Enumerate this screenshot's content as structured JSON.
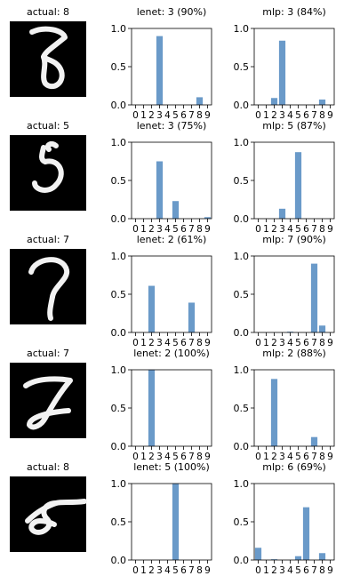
{
  "chart_data": {
    "type": "bar",
    "categories": [
      "0",
      "1",
      "2",
      "3",
      "4",
      "5",
      "6",
      "7",
      "8",
      "9"
    ],
    "ylim": [
      0,
      1
    ],
    "yticks": [
      "0.0",
      "0.5",
      "1.0"
    ],
    "bar_color": "#6A9AC9",
    "rows": [
      {
        "digit_title": "actual: 8",
        "lenet": {
          "title": "lenet: 3 (90%)",
          "values": [
            0,
            0,
            0,
            0.9,
            0,
            0,
            0,
            0,
            0.1,
            0
          ]
        },
        "mlp": {
          "title": "mlp: 3 (84%)",
          "values": [
            0,
            0,
            0.09,
            0.84,
            0,
            0,
            0,
            0,
            0.07,
            0
          ]
        }
      },
      {
        "digit_title": "actual: 5",
        "lenet": {
          "title": "lenet: 3 (75%)",
          "values": [
            0,
            0,
            0,
            0.75,
            0,
            0.23,
            0,
            0,
            0,
            0.02
          ]
        },
        "mlp": {
          "title": "mlp: 5 (87%)",
          "values": [
            0,
            0,
            0,
            0.13,
            0,
            0.87,
            0,
            0,
            0,
            0
          ]
        }
      },
      {
        "digit_title": "actual: 7",
        "lenet": {
          "title": "lenet: 2 (61%)",
          "values": [
            0,
            0,
            0.61,
            0,
            0,
            0,
            0,
            0.39,
            0,
            0
          ]
        },
        "mlp": {
          "title": "mlp: 7 (90%)",
          "values": [
            0,
            0,
            0,
            0,
            0.01,
            0,
            0,
            0.9,
            0.09,
            0
          ]
        }
      },
      {
        "digit_title": "actual: 7",
        "lenet": {
          "title": "lenet: 2 (100%)",
          "values": [
            0,
            0,
            1.0,
            0,
            0,
            0,
            0,
            0,
            0,
            0
          ]
        },
        "mlp": {
          "title": "mlp: 2 (88%)",
          "values": [
            0,
            0,
            0.88,
            0,
            0,
            0,
            0,
            0.12,
            0,
            0
          ]
        }
      },
      {
        "digit_title": "actual: 8",
        "lenet": {
          "title": "lenet: 5 (100%)",
          "values": [
            0,
            0,
            0,
            0,
            0,
            1.0,
            0,
            0,
            0,
            0
          ]
        },
        "mlp": {
          "title": "mlp: 6 (69%)",
          "values": [
            0.16,
            0,
            0.01,
            0,
            0,
            0.05,
            0.69,
            0,
            0.09,
            0
          ]
        }
      }
    ]
  }
}
